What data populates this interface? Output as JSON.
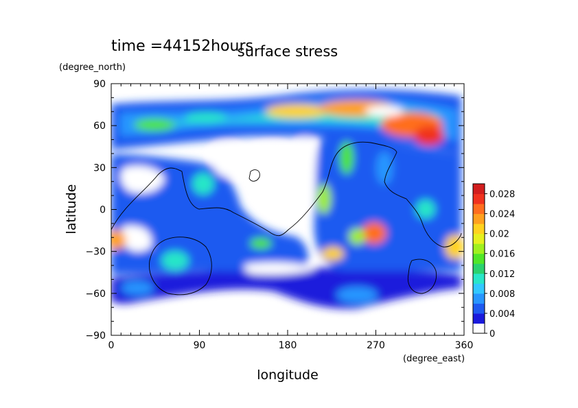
{
  "chart_data": {
    "type": "heatmap",
    "title": "surface stress",
    "subtitle": "time =44152hours",
    "xlabel": "longitude",
    "ylabel": "latitude",
    "xunit": "(degree_east)",
    "yunit": "(degree_north)",
    "xlim": [
      0,
      360
    ],
    "ylim": [
      -90,
      90
    ],
    "xticks": [
      0,
      90,
      180,
      270,
      360
    ],
    "yticks": [
      -90,
      -60,
      -30,
      0,
      30,
      60,
      90
    ],
    "xtick_labels": [
      "0",
      "90",
      "180",
      "270",
      "360"
    ],
    "ytick_labels": [
      "−90",
      "−60",
      "−30",
      "0",
      "30",
      "60",
      "90"
    ],
    "colorbar": {
      "min": 0,
      "max": 0.03,
      "ticks": [
        0,
        0.004,
        0.008,
        0.012,
        0.016,
        0.02,
        0.024,
        0.028
      ],
      "tick_labels": [
        "0",
        "0.004",
        "0.008",
        "0.012",
        "0.016",
        "0.02",
        "0.024",
        "0.028"
      ],
      "colors": [
        "#ffffff",
        "#1a1adc",
        "#1e5af0",
        "#2896ff",
        "#32c8ff",
        "#28e6c8",
        "#2ad26e",
        "#50e628",
        "#a0f01e",
        "#e6f01e",
        "#ffd21e",
        "#ffa01e",
        "#ff6e1e",
        "#f0321e",
        "#d21e1e"
      ]
    },
    "hotspots": [
      {
        "lon": 245,
        "lat": 72,
        "value": 0.026
      },
      {
        "lon": 300,
        "lat": 60,
        "value": 0.027
      },
      {
        "lon": 325,
        "lat": 52,
        "value": 0.022
      },
      {
        "lon": 200,
        "lat": 68,
        "value": 0.02
      },
      {
        "lon": 270,
        "lat": -22,
        "value": 0.022
      },
      {
        "lon": 228,
        "lat": -30,
        "value": 0.02
      },
      {
        "lon": 5,
        "lat": -22,
        "value": 0.022
      },
      {
        "lon": 355,
        "lat": -25,
        "value": 0.018
      },
      {
        "lon": 220,
        "lat": 15,
        "value": 0.018
      },
      {
        "lon": 305,
        "lat": 0,
        "value": 0.016
      }
    ]
  }
}
